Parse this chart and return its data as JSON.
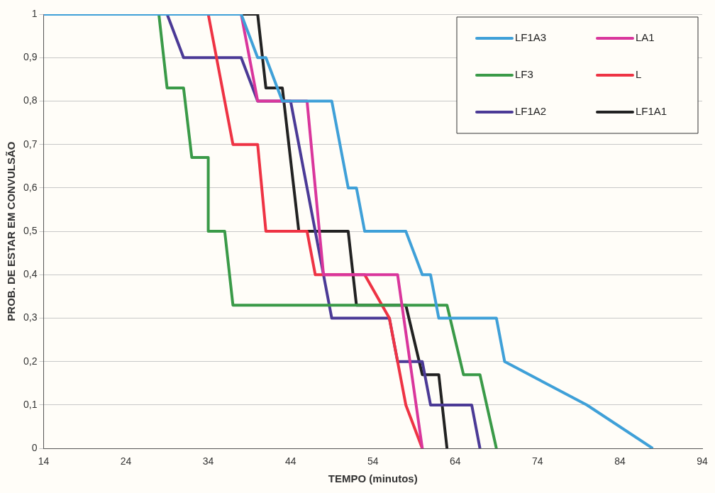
{
  "chart_data": {
    "type": "line",
    "xlabel": "TEMPO (minutos)",
    "ylabel": "PROB. DE ESTAR EM CONVULSÃO",
    "xlim": [
      14,
      94
    ],
    "xticks": [
      14,
      24,
      34,
      44,
      54,
      64,
      74,
      84,
      94
    ],
    "ylim": [
      0,
      1
    ],
    "yticks": [
      0,
      {
        "value": 0.1,
        "label": "0,1"
      },
      {
        "value": 0.2,
        "label": "0,2"
      },
      {
        "value": 0.3,
        "label": "0,3"
      },
      {
        "value": 0.4,
        "label": "0,4"
      },
      {
        "value": 0.5,
        "label": "0,5"
      },
      {
        "value": 0.6,
        "label": "0,6"
      },
      {
        "value": 0.7,
        "label": "0,7"
      },
      {
        "value": 0.8,
        "label": "0,8"
      },
      {
        "value": 0.9,
        "label": "0,9"
      },
      1
    ],
    "grid": "y",
    "legend": "top right",
    "marker": "none",
    "line_style": "solid",
    "series": [
      {
        "name": "LF1A3",
        "color": "#3fa0d8",
        "x": [
          14,
          38,
          40,
          41,
          43,
          49,
          51,
          52,
          53,
          58,
          60,
          61,
          62,
          69,
          70,
          80,
          88
        ],
        "values": [
          1,
          1,
          0.9,
          0.9,
          0.8,
          0.8,
          0.6,
          0.6,
          0.5,
          0.5,
          0.4,
          0.4,
          0.3,
          0.3,
          0.2,
          0.1,
          0
        ]
      },
      {
        "name": "LA1",
        "color": "#d9369c",
        "x": [
          14,
          38,
          40,
          46,
          48,
          57,
          60
        ],
        "values": [
          1,
          1,
          0.8,
          0.8,
          0.4,
          0.4,
          0
        ]
      },
      {
        "name": "LF3",
        "color": "#3a9a48",
        "x": [
          14,
          28,
          29,
          31,
          32,
          34,
          34,
          36,
          37,
          63,
          65,
          67,
          69
        ],
        "values": [
          1,
          1,
          0.83,
          0.83,
          0.67,
          0.67,
          0.5,
          0.5,
          0.33,
          0.33,
          0.17,
          0.17,
          0
        ]
      },
      {
        "name": "L",
        "color": "#ee3344",
        "x": [
          14,
          34,
          37,
          40,
          41,
          46,
          47,
          53,
          56,
          58,
          60
        ],
        "values": [
          1,
          1,
          0.7,
          0.7,
          0.5,
          0.5,
          0.4,
          0.4,
          0.3,
          0.1,
          0
        ]
      },
      {
        "name": "LF1A2",
        "color": "#4b3a96",
        "x": [
          14,
          29,
          31,
          38,
          40,
          44,
          49,
          56,
          57,
          60,
          61,
          66,
          67
        ],
        "values": [
          1,
          1,
          0.9,
          0.9,
          0.8,
          0.8,
          0.3,
          0.3,
          0.2,
          0.2,
          0.1,
          0.1,
          0
        ]
      },
      {
        "name": "LF1A1",
        "color": "#222222",
        "x": [
          14,
          40,
          41,
          43,
          45,
          51,
          52,
          58,
          60,
          62,
          63
        ],
        "values": [
          1,
          1,
          0.83,
          0.83,
          0.5,
          0.5,
          0.33,
          0.33,
          0.17,
          0.17,
          0
        ]
      }
    ]
  }
}
